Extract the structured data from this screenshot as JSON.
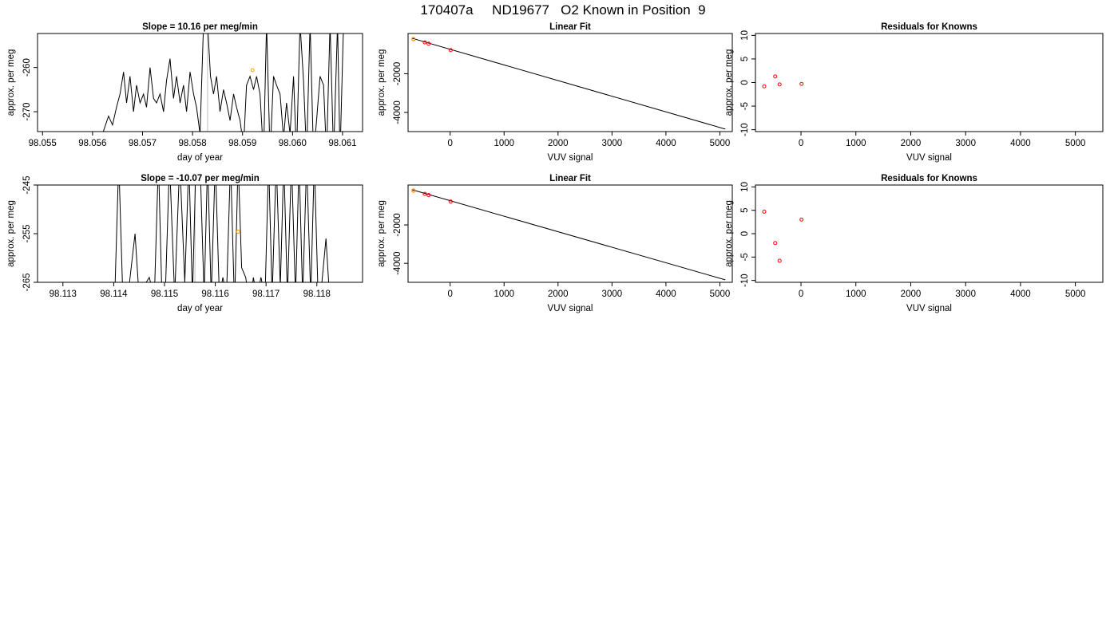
{
  "page_title": "170407a     ND19677   O2 Known in Position  9",
  "chart_data": [
    {
      "type": "line",
      "title": "Slope =  10.16  per meg/min",
      "xlabel": "day of year",
      "ylabel": "approx. per meg",
      "xlim": [
        98.0549,
        98.0614
      ],
      "ylim": [
        -274.5,
        -252.3
      ],
      "xticks": [
        "98.055",
        "98.056",
        "98.057",
        "98.058",
        "98.059",
        "98.060",
        "98.061"
      ],
      "yticks": [
        "-260",
        "-270"
      ],
      "grid": false,
      "series": [
        {
          "color": "#000000",
          "x": [
            98.0562,
            98.05632,
            98.0564,
            98.05648,
            98.05655,
            98.05662,
            98.05668,
            98.05675,
            98.05682,
            98.05688,
            98.05695,
            98.05702,
            98.05708,
            98.05715,
            98.05722,
            98.05728,
            98.05735,
            98.05742,
            98.05748,
            98.05755,
            98.05762,
            98.05768,
            98.05775,
            98.05782,
            98.05788,
            98.05795,
            98.05802,
            98.05808,
            98.05815,
            98.05822,
            98.0583,
            98.05836,
            98.05842,
            98.05848,
            98.05855,
            98.05862,
            98.05868,
            98.05875,
            98.05882,
            98.05888,
            98.05895,
            98.05902,
            98.05908,
            98.05915,
            98.05922,
            98.05928,
            98.05935,
            98.05942,
            98.05948,
            98.05955,
            98.05962,
            98.05968,
            98.05975,
            98.05982,
            98.05988,
            98.05995,
            98.06002,
            98.06008,
            98.06015,
            98.06022,
            98.06028,
            98.06035,
            98.06042,
            98.06048,
            98.06055,
            98.06062,
            98.06068,
            98.06075,
            98.06082,
            98.0609,
            98.06095,
            98.06102
          ],
          "y": [
            -275,
            -271,
            -273,
            -269,
            -266,
            -261,
            -268,
            -262,
            -270,
            -264,
            -268,
            -266,
            -269,
            -260,
            -267,
            -268,
            -266,
            -270,
            -263,
            -258,
            -267,
            -262,
            -268,
            -264,
            -270,
            -261,
            -266,
            -269,
            -275,
            -250,
            -250,
            -262,
            -266,
            -262,
            -270,
            -265,
            -268,
            -272,
            -266,
            -269,
            -272,
            -278,
            -264,
            -262,
            -265,
            -262,
            -266,
            -280,
            -250,
            -280,
            -262,
            -264,
            -266,
            -276,
            -268,
            -275,
            -262,
            -280,
            -250,
            -263,
            -280,
            -250,
            -280,
            -272,
            -262,
            -264,
            -280,
            -250,
            -280,
            -250,
            -280,
            -250
          ]
        }
      ],
      "points": [
        {
          "x": 98.0592,
          "y": -260.6,
          "color": "#ffa500"
        }
      ],
      "vlines": [
        {
          "x": 98.0583,
          "color": "#bebebe"
        }
      ]
    },
    {
      "type": "scatter",
      "title": "Linear Fit",
      "xlabel": "VUV signal",
      "ylabel": "approx. per meg",
      "xlim": [
        -780,
        5230
      ],
      "ylim": [
        -4990,
        80
      ],
      "xticks": [
        "0",
        "1000",
        "2000",
        "3000",
        "4000",
        "5000"
      ],
      "yticks": [
        "-2000",
        "-4000"
      ],
      "grid": false,
      "line": {
        "x": [
          -700,
          5100
        ],
        "y": [
          -170,
          -4860
        ]
      },
      "points": [
        {
          "x": -680,
          "y": -210,
          "color": "#ff0000"
        },
        {
          "x": -470,
          "y": -380,
          "color": "#ff0000"
        },
        {
          "x": -400,
          "y": -445,
          "color": "#ff0000"
        },
        {
          "x": 10,
          "y": -780,
          "color": "#ff0000"
        },
        {
          "x": -680,
          "y": -200,
          "color": "#ffa500"
        }
      ]
    },
    {
      "type": "scatter",
      "title": "Residuals for Knowns",
      "xlabel": "VUV signal",
      "ylabel": "approx. per meg",
      "xlim": [
        -830,
        5500
      ],
      "ylim": [
        -10.4,
        10.4
      ],
      "xticks": [
        "0",
        "1000",
        "2000",
        "3000",
        "4000",
        "5000"
      ],
      "yticks": [
        "10",
        "5",
        "0",
        "-5",
        "-10"
      ],
      "grid": false,
      "points": [
        {
          "x": -670,
          "y": -0.8,
          "color": "#ff0000"
        },
        {
          "x": -470,
          "y": 1.3,
          "color": "#ff0000"
        },
        {
          "x": -390,
          "y": -0.4,
          "color": "#ff0000"
        },
        {
          "x": 10,
          "y": -0.3,
          "color": "#ff0000"
        }
      ]
    },
    {
      "type": "line",
      "title": "Slope =  -10.07  per meg/min",
      "xlabel": "day of year",
      "ylabel": "approx. per meg",
      "xlim": [
        98.1125,
        98.1189
      ],
      "ylim": [
        -265.0,
        -245.0
      ],
      "xticks": [
        "98.113",
        "98.114",
        "98.115",
        "98.116",
        "98.117",
        "98.118"
      ],
      "yticks": [
        "-245",
        "-255",
        "-265"
      ],
      "grid": false,
      "series": [
        {
          "color": "#000000",
          "x": [
            98.11402,
            98.1141,
            98.11418,
            98.1143,
            98.11442,
            98.1145,
            98.11458,
            98.1147,
            98.1148,
            98.11488,
            98.11495,
            98.11502,
            98.1151,
            98.1152,
            98.1153,
            98.1154,
            98.11548,
            98.11555,
            98.11562,
            98.1157,
            98.11578,
            98.11585,
            98.11592,
            98.116,
            98.11608,
            98.11615,
            98.11622,
            98.1163,
            98.11638,
            98.11645,
            98.11652,
            98.1166,
            98.11668,
            98.11675,
            98.11682,
            98.1169,
            98.11698,
            98.11705,
            98.11712,
            98.1172,
            98.11728,
            98.11735,
            98.11742,
            98.1175,
            98.11758,
            98.11765,
            98.11772,
            98.1178,
            98.11788,
            98.11795,
            98.11802,
            98.1181,
            98.11818,
            98.11825
          ],
          "y": [
            -268,
            -240,
            -268,
            -266,
            -255,
            -268,
            -266,
            -264,
            -268,
            -240,
            -268,
            -266,
            -240,
            -268,
            -240,
            -265,
            -240,
            -268,
            -240,
            -240,
            -268,
            -240,
            -268,
            -240,
            -268,
            -264,
            -268,
            -240,
            -270,
            -240,
            -262,
            -264,
            -270,
            -264,
            -268,
            -264,
            -268,
            -240,
            -268,
            -240,
            -266,
            -240,
            -268,
            -240,
            -268,
            -240,
            -268,
            -240,
            -268,
            -240,
            -266,
            -265,
            -256,
            -268
          ]
        }
      ],
      "points": [
        {
          "x": 98.11645,
          "y": -254.6,
          "color": "#ffa500"
        }
      ],
      "vlines": [
        {
          "x": 98.1156,
          "color": "#bebebe"
        }
      ]
    },
    {
      "type": "scatter",
      "title": "Linear Fit",
      "xlabel": "VUV signal",
      "ylabel": "approx. per meg",
      "xlim": [
        -780,
        5230
      ],
      "ylim": [
        -4990,
        80
      ],
      "xticks": [
        "0",
        "1000",
        "2000",
        "3000",
        "4000",
        "5000"
      ],
      "yticks": [
        "-2000",
        "-4000"
      ],
      "grid": false,
      "line": {
        "x": [
          -700,
          5100
        ],
        "y": [
          -170,
          -4860
        ]
      },
      "points": [
        {
          "x": -680,
          "y": -210,
          "color": "#ff0000"
        },
        {
          "x": -470,
          "y": -380,
          "color": "#ff0000"
        },
        {
          "x": -400,
          "y": -445,
          "color": "#ff0000"
        },
        {
          "x": 10,
          "y": -780,
          "color": "#ff0000"
        },
        {
          "x": -680,
          "y": -200,
          "color": "#ffa500"
        }
      ]
    },
    {
      "type": "scatter",
      "title": "Residuals for Knowns",
      "xlabel": "VUV signal",
      "ylabel": "approx. per meg",
      "xlim": [
        -830,
        5500
      ],
      "ylim": [
        -10.4,
        10.4
      ],
      "xticks": [
        "0",
        "1000",
        "2000",
        "3000",
        "4000",
        "5000"
      ],
      "yticks": [
        "10",
        "5",
        "0",
        "-5",
        "-10"
      ],
      "grid": false,
      "points": [
        {
          "x": -670,
          "y": 4.7,
          "color": "#ff0000"
        },
        {
          "x": -470,
          "y": -2.0,
          "color": "#ff0000"
        },
        {
          "x": -390,
          "y": -5.8,
          "color": "#ff0000"
        },
        {
          "x": 10,
          "y": 3.0,
          "color": "#ff0000"
        }
      ]
    }
  ]
}
